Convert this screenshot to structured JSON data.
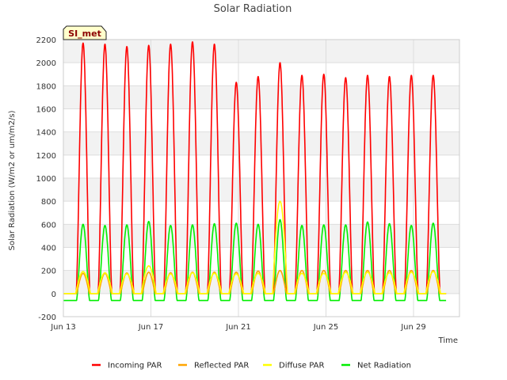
{
  "chart_data": {
    "type": "line",
    "title": "Solar Radiation",
    "xlabel": "Time",
    "ylabel": "Solar Radiation (W/m2 or um/m2/s)",
    "badge": "SI_met",
    "ylim": [
      -200,
      2200
    ],
    "xlim_days": [
      13,
      31.1
    ],
    "yticks": [
      -200,
      0,
      200,
      400,
      600,
      800,
      1000,
      1200,
      1400,
      1600,
      1800,
      2000,
      2200
    ],
    "xticks": [
      {
        "day": 13,
        "label": "Jun 13"
      },
      {
        "day": 17,
        "label": "Jun 17"
      },
      {
        "day": 21,
        "label": "Jun 21"
      },
      {
        "day": 25,
        "label": "Jun 25"
      },
      {
        "day": 29,
        "label": "Jun 29"
      }
    ],
    "grid": true,
    "legend_position": "bottom",
    "series": [
      {
        "name": "Incoming PAR",
        "color": "#ff0000",
        "daily_peak": [
          2170,
          2160,
          2140,
          2150,
          2160,
          2180,
          2160,
          1830,
          1880,
          2000,
          1890,
          1900,
          1870,
          1890,
          1880,
          1890,
          1890
        ]
      },
      {
        "name": "Reflected PAR",
        "color": "#ffa500",
        "daily_peak": [
          175,
          175,
          178,
          185,
          180,
          185,
          185,
          185,
          195,
          200,
          200,
          200,
          200,
          200,
          200,
          200,
          200
        ]
      },
      {
        "name": "Diffuse PAR",
        "color": "#ffff00",
        "daily_peak": [
          190,
          180,
          170,
          240,
          170,
          180,
          175,
          170,
          175,
          800,
          175,
          175,
          185,
          185,
          180,
          185,
          190
        ]
      },
      {
        "name": "Net Radiation",
        "color": "#00ee00",
        "daily_peak": [
          600,
          590,
          595,
          625,
          590,
          595,
          605,
          610,
          600,
          640,
          590,
          595,
          595,
          620,
          605,
          590,
          610
        ],
        "night_value": -60
      }
    ],
    "days": [
      13.9,
      14.9,
      15.9,
      16.9,
      17.9,
      18.9,
      19.9,
      20.9,
      21.9,
      22.9,
      23.9,
      24.9,
      25.9,
      26.9,
      27.9,
      28.9,
      29.9
    ]
  }
}
